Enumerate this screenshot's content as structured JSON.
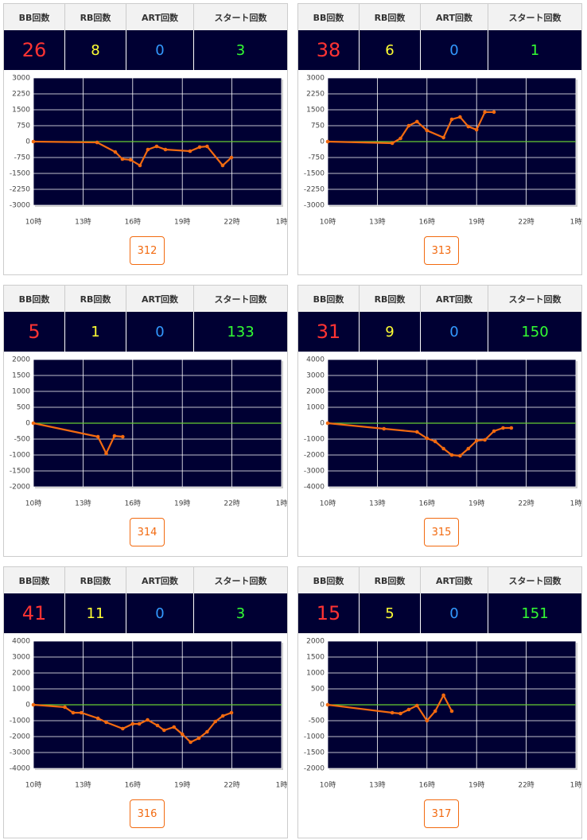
{
  "chart_data": [
    {
      "type": "line",
      "x": [
        10,
        13.85,
        14.95,
        15.38,
        15.87,
        16.44,
        16.92,
        17.45,
        17.98,
        19.47,
        20.05,
        20.5,
        21.44,
        21.97
      ],
      "values": [
        0,
        -40,
        -490,
        -825,
        -860,
        -1125,
        -375,
        -225,
        -375,
        -450,
        -260,
        -225,
        -1125,
        -750
      ],
      "color": "#f26a10",
      "baseline_color": "#66cc33",
      "grid": true,
      "xlim": [
        10,
        25
      ],
      "xticks": [
        {
          "value": 10,
          "label": "10時"
        },
        {
          "value": 13,
          "label": "13時"
        },
        {
          "value": 16,
          "label": "16時"
        },
        {
          "value": 19,
          "label": "19時"
        },
        {
          "value": 22,
          "label": "22時"
        },
        {
          "value": 25,
          "label": "1時"
        }
      ],
      "ylim": [
        -3000,
        3000
      ],
      "yticks": [
        3000,
        2250,
        1500,
        750,
        0,
        -750,
        -1500,
        -2250,
        -3000
      ]
    },
    {
      "type": "line",
      "x": [
        10,
        13.9,
        14.4,
        14.9,
        15.4,
        16.0,
        17.0,
        17.5,
        18.0,
        18.5,
        19.0,
        19.5,
        20.05
      ],
      "values": [
        0,
        -75,
        150,
        750,
        940,
        525,
        190,
        1050,
        1160,
        710,
        560,
        1390,
        1390
      ],
      "color": "#f26a10",
      "baseline_color": "#66cc33",
      "grid": true,
      "xlim": [
        10,
        25
      ],
      "xticks": [
        {
          "value": 10,
          "label": "10時"
        },
        {
          "value": 13,
          "label": "13時"
        },
        {
          "value": 16,
          "label": "16時"
        },
        {
          "value": 19,
          "label": "19時"
        },
        {
          "value": 22,
          "label": "22時"
        },
        {
          "value": 25,
          "label": "1時"
        }
      ],
      "ylim": [
        -3000,
        3000
      ],
      "yticks": [
        3000,
        2250,
        1500,
        750,
        0,
        -750,
        -1500,
        -2250,
        -3000
      ]
    },
    {
      "type": "line",
      "x": [
        10,
        13.9,
        14.4,
        14.9,
        15.4
      ],
      "values": [
        0,
        -425,
        -950,
        -400,
        -425
      ],
      "color": "#f26a10",
      "baseline_color": "#66cc33",
      "grid": true,
      "xlim": [
        10,
        25
      ],
      "xticks": [
        {
          "value": 10,
          "label": "10時"
        },
        {
          "value": 13,
          "label": "13時"
        },
        {
          "value": 16,
          "label": "16時"
        },
        {
          "value": 19,
          "label": "19時"
        },
        {
          "value": 22,
          "label": "22時"
        },
        {
          "value": 25,
          "label": "1時"
        }
      ],
      "ylim": [
        -2000,
        2000
      ],
      "yticks": [
        2000,
        1500,
        1000,
        500,
        0,
        -500,
        -1000,
        -1500,
        -2000
      ]
    },
    {
      "type": "line",
      "x": [
        10,
        13.4,
        15.4,
        16.0,
        16.5,
        17.0,
        17.5,
        18.0,
        18.5,
        19.0,
        19.5,
        20.05,
        20.6,
        21.1
      ],
      "values": [
        0,
        -350,
        -550,
        -950,
        -1150,
        -1600,
        -2000,
        -2050,
        -1600,
        -1100,
        -1050,
        -500,
        -300,
        -300
      ],
      "color": "#f26a10",
      "baseline_color": "#66cc33",
      "grid": true,
      "xlim": [
        10,
        25
      ],
      "xticks": [
        {
          "value": 10,
          "label": "10時"
        },
        {
          "value": 13,
          "label": "13時"
        },
        {
          "value": 16,
          "label": "16時"
        },
        {
          "value": 19,
          "label": "19時"
        },
        {
          "value": 22,
          "label": "22時"
        },
        {
          "value": 25,
          "label": "1時"
        }
      ],
      "ylim": [
        -4000,
        4000
      ],
      "yticks": [
        4000,
        3000,
        2000,
        1000,
        0,
        -1000,
        -2000,
        -3000,
        -4000
      ]
    },
    {
      "type": "line",
      "x": [
        10,
        11.9,
        12.4,
        12.9,
        13.9,
        14.4,
        15.4,
        16.0,
        16.4,
        16.9,
        17.5,
        17.9,
        18.5,
        19.0,
        19.5,
        20.0,
        20.5,
        21.0,
        21.45,
        21.97
      ],
      "values": [
        0,
        -150,
        -500,
        -500,
        -850,
        -1100,
        -1500,
        -1200,
        -1200,
        -950,
        -1300,
        -1600,
        -1400,
        -1850,
        -2350,
        -2100,
        -1700,
        -1050,
        -700,
        -500
      ],
      "color": "#f26a10",
      "baseline_color": "#66cc33",
      "grid": true,
      "xlim": [
        10,
        25
      ],
      "xticks": [
        {
          "value": 10,
          "label": "10時"
        },
        {
          "value": 13,
          "label": "13時"
        },
        {
          "value": 16,
          "label": "16時"
        },
        {
          "value": 19,
          "label": "19時"
        },
        {
          "value": 22,
          "label": "22時"
        },
        {
          "value": 25,
          "label": "1時"
        }
      ],
      "ylim": [
        -4000,
        4000
      ],
      "yticks": [
        4000,
        3000,
        2000,
        1000,
        0,
        -1000,
        -2000,
        -3000,
        -4000
      ]
    },
    {
      "type": "line",
      "x": [
        10,
        13.9,
        14.4,
        14.9,
        15.4,
        16.0,
        16.5,
        17.0,
        17.5
      ],
      "values": [
        0,
        -250,
        -275,
        -150,
        -25,
        -500,
        -200,
        300,
        -200
      ],
      "color": "#f26a10",
      "baseline_color": "#66cc33",
      "grid": true,
      "xlim": [
        10,
        25
      ],
      "xticks": [
        {
          "value": 10,
          "label": "10時"
        },
        {
          "value": 13,
          "label": "13時"
        },
        {
          "value": 16,
          "label": "16時"
        },
        {
          "value": 19,
          "label": "19時"
        },
        {
          "value": 22,
          "label": "22時"
        },
        {
          "value": 25,
          "label": "1時"
        }
      ],
      "ylim": [
        -2000,
        2000
      ],
      "yticks": [
        2000,
        1500,
        1000,
        500,
        0,
        -500,
        -1000,
        -1500,
        -2000
      ]
    }
  ],
  "panels": [
    {
      "headers": [
        "BB回数",
        "RB回数",
        "ART回数",
        "スタート回数"
      ],
      "values": [
        26,
        8,
        0,
        3
      ],
      "button": "312"
    },
    {
      "headers": [
        "BB回数",
        "RB回数",
        "ART回数",
        "スタート回数"
      ],
      "values": [
        38,
        6,
        0,
        1
      ],
      "button": "313"
    },
    {
      "headers": [
        "BB回数",
        "RB回数",
        "ART回数",
        "スタート回数"
      ],
      "values": [
        5,
        1,
        0,
        133
      ],
      "button": "314"
    },
    {
      "headers": [
        "BB回数",
        "RB回数",
        "ART回数",
        "スタート回数"
      ],
      "values": [
        31,
        9,
        0,
        150
      ],
      "button": "315"
    },
    {
      "headers": [
        "BB回数",
        "RB回数",
        "ART回数",
        "スタート回数"
      ],
      "values": [
        41,
        11,
        0,
        3
      ],
      "button": "316"
    },
    {
      "headers": [
        "BB回数",
        "RB回数",
        "ART回数",
        "スタート回数"
      ],
      "values": [
        15,
        5,
        0,
        151
      ],
      "button": "317"
    }
  ]
}
